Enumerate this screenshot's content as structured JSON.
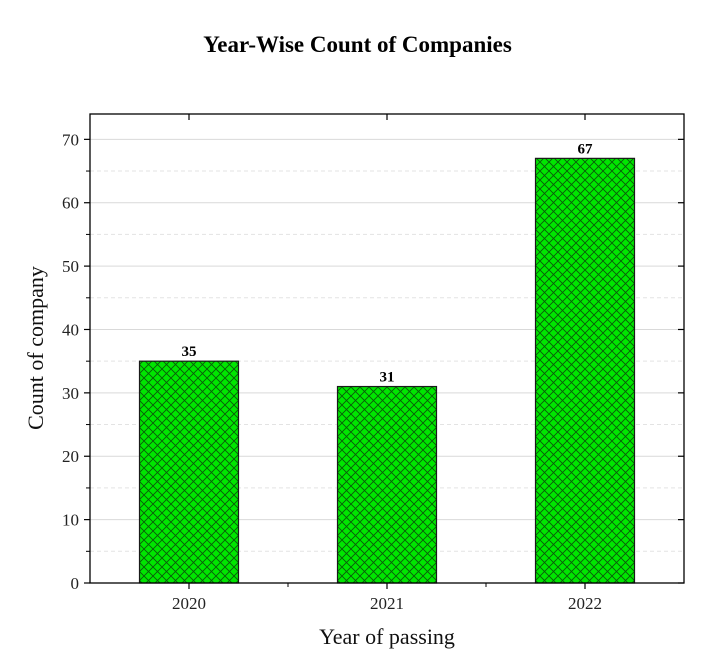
{
  "chart_data": {
    "type": "bar",
    "title": "Year-Wise Count of Companies",
    "xlabel": "Year of passing",
    "ylabel": "Count of company",
    "categories": [
      "2020",
      "2021",
      "2022"
    ],
    "values": [
      35,
      31,
      67
    ],
    "data_labels": [
      "35",
      "31",
      "67"
    ],
    "ylim": [
      0,
      74
    ],
    "yticks": [
      0,
      10,
      20,
      30,
      40,
      50,
      60,
      70
    ],
    "ytick_labels": [
      "0",
      "10",
      "20",
      "30",
      "40",
      "50",
      "60",
      "70"
    ],
    "grid": true,
    "legend": "none",
    "bar_color": "#00e600",
    "hatch_color": "#0a5a0a",
    "hatch": "crosshatch"
  }
}
